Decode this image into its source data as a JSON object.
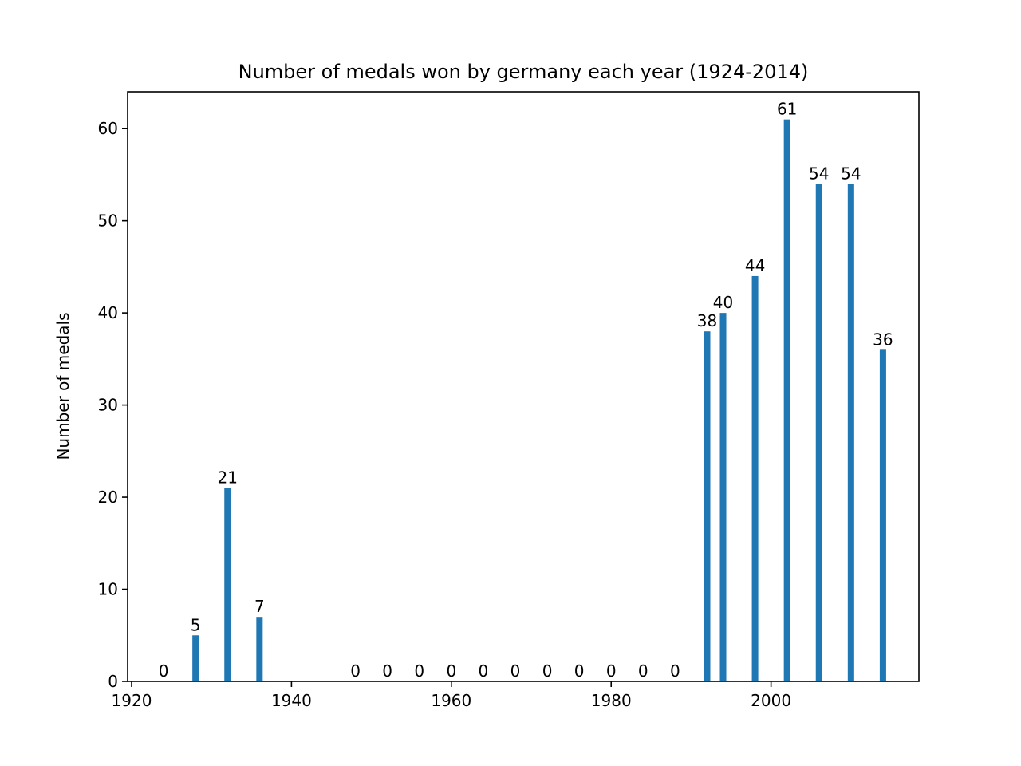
{
  "chart_data": {
    "type": "bar",
    "title": "Number of medals won by germany each year (1924-2014)",
    "xlabel": "",
    "ylabel": "Number of medals",
    "x": [
      1924,
      1928,
      1932,
      1936,
      1948,
      1952,
      1956,
      1960,
      1964,
      1968,
      1972,
      1976,
      1980,
      1984,
      1988,
      1992,
      1994,
      1998,
      2002,
      2006,
      2010,
      2014
    ],
    "values": [
      0,
      5,
      21,
      7,
      0,
      0,
      0,
      0,
      0,
      0,
      0,
      0,
      0,
      0,
      0,
      38,
      40,
      44,
      61,
      54,
      54,
      36
    ],
    "data_labels": [
      "0",
      "5",
      "21",
      "7",
      "0",
      "0",
      "0",
      "0",
      "0",
      "0",
      "0",
      "0",
      "0",
      "0",
      "0",
      "38",
      "40",
      "44",
      "61",
      "54",
      "54",
      "36"
    ],
    "xlim": [
      1919.5,
      2018.5
    ],
    "ylim": [
      0,
      64
    ],
    "xticks": [
      1920,
      1940,
      1960,
      1980,
      2000
    ],
    "xtick_labels": [
      "1920",
      "1940",
      "1960",
      "1980",
      "2000"
    ],
    "yticks": [
      0,
      10,
      20,
      30,
      40,
      50,
      60
    ],
    "ytick_labels": [
      "0",
      "10",
      "20",
      "30",
      "40",
      "50",
      "60"
    ],
    "bar_color": "#1f77b4",
    "grid": false,
    "legend": "none"
  }
}
